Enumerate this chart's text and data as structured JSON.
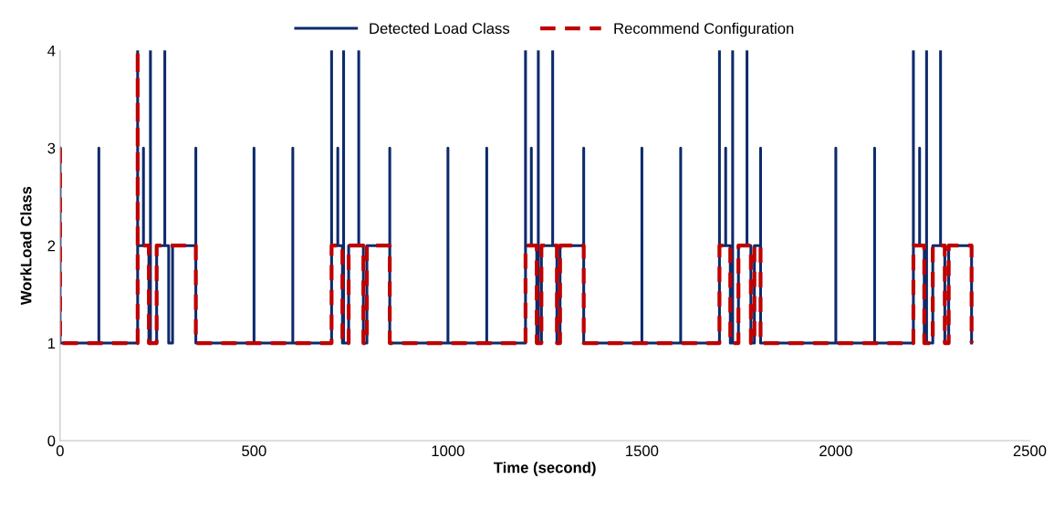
{
  "chart_data": {
    "type": "line",
    "xlabel": "Time (second)",
    "ylabel": "WorkLoad Class",
    "xlim": [
      0,
      2500
    ],
    "xticks": [
      0,
      500,
      1000,
      1500,
      2000,
      2500
    ],
    "ylim": [
      0,
      4
    ],
    "yticks": [
      0,
      1,
      2,
      3,
      4
    ],
    "grid": false,
    "legend": "top",
    "marker": "none",
    "series": [
      {
        "name": "Detected Load Class",
        "color": "#0d2a6b",
        "line_style": "solid",
        "x": [
          0,
          0,
          100,
          100,
          100,
          200,
          200,
          200,
          215,
          215,
          215,
          229,
          229,
          233,
          233,
          233,
          249,
          249,
          270,
          270,
          270,
          280,
          280,
          290,
          290,
          350,
          350,
          350,
          500,
          500,
          500,
          600,
          600,
          600,
          700,
          700,
          700,
          716,
          716,
          716,
          728,
          728,
          731,
          731,
          731,
          744,
          744,
          770,
          770,
          770,
          782,
          782,
          791,
          791,
          850,
          850,
          850,
          1000,
          1000,
          1000,
          1100,
          1100,
          1100,
          1200,
          1200,
          1200,
          1215,
          1215,
          1215,
          1229,
          1229,
          1233,
          1233,
          1233,
          1241,
          1241,
          1270,
          1270,
          1270,
          1281,
          1281,
          1289,
          1289,
          1350,
          1350,
          1350,
          1500,
          1500,
          1500,
          1600,
          1600,
          1600,
          1700,
          1700,
          1700,
          1716,
          1716,
          1716,
          1728,
          1728,
          1734,
          1734,
          1734,
          1749,
          1749,
          1771,
          1771,
          1771,
          1781,
          1781,
          1790,
          1790,
          1806,
          1806,
          1806,
          2000,
          2000,
          2000,
          2100,
          2100,
          2100,
          2200,
          2200,
          2200,
          2216,
          2216,
          2216,
          2228,
          2228,
          2234,
          2234,
          2234,
          2250,
          2250,
          2270,
          2270,
          2270,
          2281,
          2281,
          2291,
          2291,
          2350,
          2350
        ],
        "values": [
          3,
          1,
          1,
          3,
          1,
          1,
          4,
          2,
          2,
          3,
          2,
          2,
          1,
          1,
          4,
          1,
          1,
          2,
          2,
          4,
          2,
          2,
          1,
          1,
          2,
          2,
          3,
          1,
          1,
          3,
          1,
          1,
          3,
          1,
          1,
          4,
          2,
          2,
          3,
          2,
          2,
          1,
          1,
          4,
          1,
          1,
          2,
          2,
          4,
          2,
          2,
          1,
          1,
          2,
          2,
          3,
          1,
          1,
          3,
          1,
          1,
          3,
          1,
          1,
          4,
          2,
          2,
          3,
          2,
          2,
          1,
          1,
          4,
          1,
          1,
          2,
          2,
          4,
          2,
          2,
          1,
          1,
          2,
          2,
          3,
          1,
          1,
          3,
          1,
          1,
          3,
          1,
          1,
          4,
          2,
          2,
          3,
          2,
          2,
          1,
          1,
          4,
          1,
          1,
          2,
          2,
          4,
          2,
          2,
          1,
          1,
          2,
          2,
          3,
          1,
          1,
          3,
          1,
          1,
          3,
          1,
          1,
          4,
          2,
          2,
          3,
          2,
          2,
          1,
          1,
          4,
          1,
          1,
          2,
          2,
          4,
          2,
          2,
          1,
          1,
          2,
          2,
          1
        ]
      },
      {
        "name": "Recommend Configuration",
        "color": "#c00000",
        "line_style": "dashed",
        "x": [
          0,
          0,
          200,
          200,
          200,
          229,
          229,
          249,
          249,
          350,
          350,
          700,
          700,
          728,
          728,
          744,
          744,
          782,
          782,
          791,
          791,
          850,
          850,
          1200,
          1200,
          1229,
          1229,
          1241,
          1241,
          1281,
          1281,
          1289,
          1289,
          1350,
          1350,
          1700,
          1700,
          1728,
          1728,
          1749,
          1749,
          1781,
          1781,
          1790,
          1790,
          1806,
          1806,
          2200,
          2200,
          2228,
          2228,
          2250,
          2250,
          2281,
          2281,
          2291,
          2291,
          2350,
          2350
        ],
        "values": [
          3,
          1,
          1,
          4,
          2,
          2,
          1,
          1,
          2,
          2,
          1,
          1,
          2,
          2,
          1,
          1,
          2,
          2,
          1,
          1,
          2,
          2,
          1,
          1,
          2,
          2,
          1,
          1,
          2,
          2,
          1,
          1,
          2,
          2,
          1,
          1,
          2,
          2,
          1,
          1,
          2,
          2,
          1,
          1,
          2,
          2,
          1,
          1,
          2,
          2,
          1,
          1,
          2,
          2,
          1,
          1,
          2,
          2,
          1
        ]
      }
    ]
  }
}
